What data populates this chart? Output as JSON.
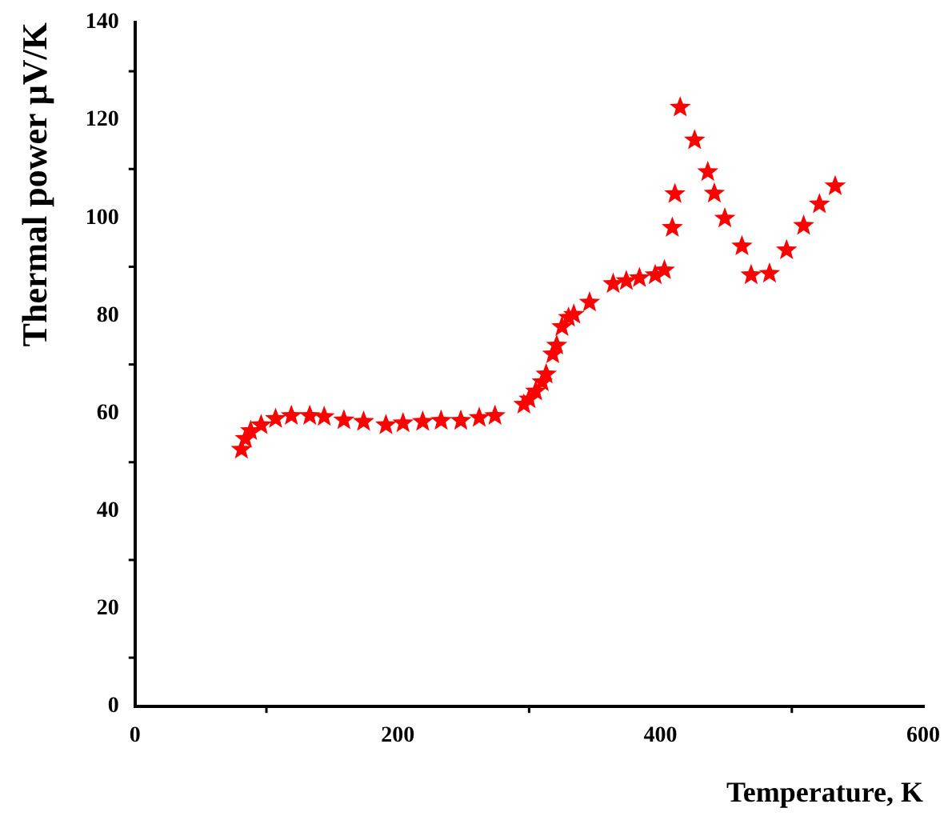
{
  "chart_data": {
    "type": "scatter",
    "xlabel": "Temperature, K",
    "ylabel": "Thermal power μV/K",
    "marker": "star",
    "grid": false,
    "legend": false,
    "xlim": [
      0,
      600
    ],
    "xticks": [
      0,
      200,
      400,
      600
    ],
    "ylim": [
      0,
      140
    ],
    "yticks": [
      0,
      20,
      40,
      60,
      80,
      100,
      120,
      140
    ],
    "series": [
      {
        "color": "#ff0000",
        "x": [
          81,
          84,
          88,
          96,
          107,
          119,
          133,
          144,
          159,
          174,
          191,
          204,
          219,
          233,
          248,
          262,
          274,
          296,
          300,
          305,
          310,
          313,
          318,
          321,
          325,
          330,
          334,
          346,
          364,
          374,
          384,
          396,
          403,
          409,
          411,
          415,
          426,
          436,
          441,
          449,
          462,
          469,
          483,
          496,
          509,
          521,
          533
        ],
        "values": [
          52.6,
          54.8,
          56.4,
          57.6,
          58.9,
          59.5,
          59.5,
          59.3,
          58.6,
          58.3,
          57.6,
          58.0,
          58.3,
          58.5,
          58.5,
          59.1,
          59.5,
          61.8,
          62.9,
          64.5,
          66.4,
          68.0,
          72.1,
          73.9,
          77.7,
          79.6,
          80.2,
          82.7,
          86.5,
          87.1,
          87.7,
          88.3,
          89.3,
          98.0,
          104.9,
          122.6,
          115.9,
          109.4,
          105.0,
          99.9,
          94.2,
          88.3,
          88.6,
          93.4,
          98.4,
          102.8,
          106.5
        ]
      }
    ]
  }
}
